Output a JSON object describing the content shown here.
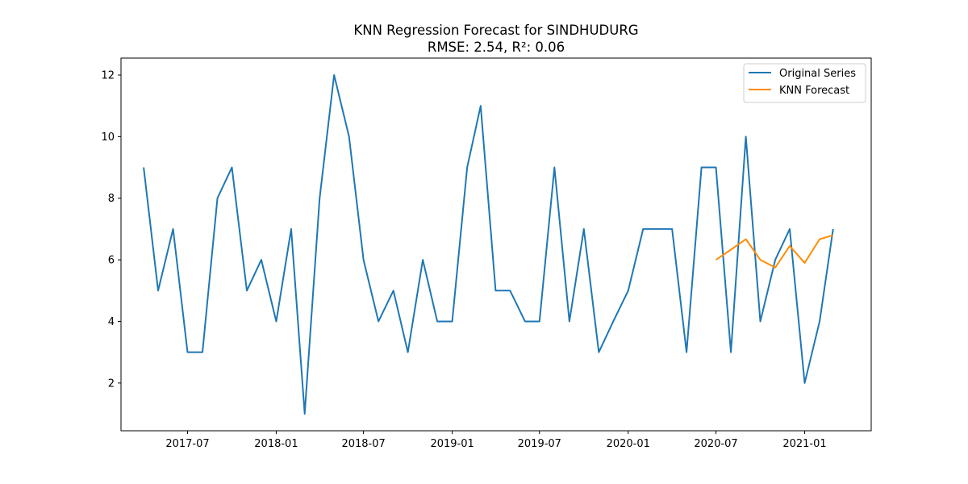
{
  "chart_data": {
    "type": "line",
    "title": "KNN Regression Forecast for SINDHUDURG",
    "subtitle": "RMSE: 2.54, R²: 0.06",
    "xlabel": "",
    "ylabel": "",
    "x_axis_type": "date",
    "xlim": [
      "2017-02-13",
      "2021-05-19"
    ],
    "ylim": [
      0.45,
      12.55
    ],
    "x_ticks": [
      {
        "date": "2017-07-01",
        "label": "2017-07"
      },
      {
        "date": "2018-01-01",
        "label": "2018-01"
      },
      {
        "date": "2018-07-01",
        "label": "2018-07"
      },
      {
        "date": "2019-01-01",
        "label": "2019-01"
      },
      {
        "date": "2019-07-01",
        "label": "2019-07"
      },
      {
        "date": "2020-01-01",
        "label": "2020-01"
      },
      {
        "date": "2020-07-01",
        "label": "2020-07"
      },
      {
        "date": "2021-01-01",
        "label": "2021-01"
      }
    ],
    "y_ticks": [
      {
        "value": 2,
        "label": "2"
      },
      {
        "value": 4,
        "label": "4"
      },
      {
        "value": 6,
        "label": "6"
      },
      {
        "value": 8,
        "label": "8"
      },
      {
        "value": 10,
        "label": "10"
      },
      {
        "value": 12,
        "label": "12"
      }
    ],
    "grid": false,
    "legend_position": "top-right",
    "series": [
      {
        "name": "Original Series",
        "color": "#1f77b4",
        "x": [
          "2017-04-01",
          "2017-05-01",
          "2017-06-01",
          "2017-07-01",
          "2017-08-01",
          "2017-09-01",
          "2017-10-01",
          "2017-11-01",
          "2017-12-01",
          "2018-01-01",
          "2018-02-01",
          "2018-03-01",
          "2018-04-01",
          "2018-05-01",
          "2018-06-01",
          "2018-07-01",
          "2018-08-01",
          "2018-09-01",
          "2018-10-01",
          "2018-11-01",
          "2018-12-01",
          "2019-01-01",
          "2019-02-01",
          "2019-03-01",
          "2019-04-01",
          "2019-05-01",
          "2019-06-01",
          "2019-07-01",
          "2019-08-01",
          "2019-09-01",
          "2019-10-01",
          "2019-11-01",
          "2019-12-01",
          "2020-01-01",
          "2020-02-01",
          "2020-03-01",
          "2020-04-01",
          "2020-05-01",
          "2020-06-01",
          "2020-07-01",
          "2020-08-01",
          "2020-09-01",
          "2020-10-01",
          "2020-11-01",
          "2020-12-01",
          "2021-01-01",
          "2021-02-01",
          "2021-03-01"
        ],
        "values": [
          9,
          5,
          7,
          3,
          3,
          8,
          9,
          5,
          6,
          4,
          7,
          1,
          8,
          12,
          10,
          6,
          4,
          5,
          3,
          6,
          4,
          4,
          9,
          11,
          5,
          5,
          4,
          4,
          9,
          4,
          7,
          3,
          4,
          5,
          7,
          7,
          7,
          3,
          9,
          9,
          3,
          10,
          4,
          6,
          7,
          2,
          4,
          7
        ]
      },
      {
        "name": "KNN Forecast",
        "color": "#ff8c00",
        "x": [
          "2020-07-01",
          "2020-08-01",
          "2020-09-01",
          "2020-10-01",
          "2020-11-01",
          "2020-12-01",
          "2021-01-01",
          "2021-02-01",
          "2021-03-01"
        ],
        "values": [
          6.0,
          6.33,
          6.67,
          6.0,
          5.75,
          6.45,
          5.9,
          6.67,
          6.8
        ]
      }
    ]
  }
}
